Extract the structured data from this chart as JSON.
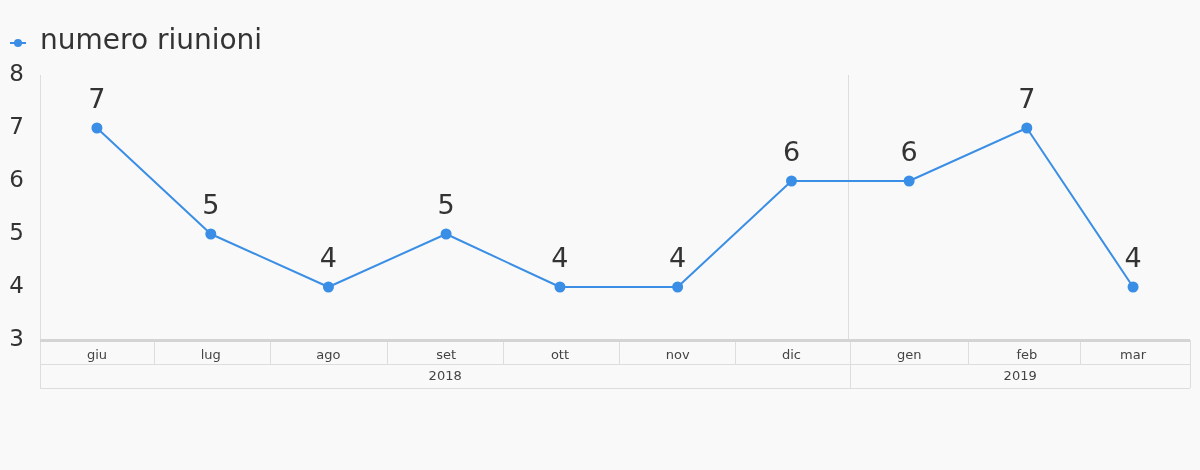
{
  "chart_data": {
    "type": "line",
    "x": [
      "2018-06",
      "2018-07",
      "2018-08",
      "2018-09",
      "2018-10",
      "2018-11",
      "2018-12",
      "2019-01",
      "2019-02",
      "2019-03"
    ],
    "xlim": [
      "2018-05-17",
      "2019-03-16"
    ],
    "xticks": [
      {
        "value": "2018-06",
        "label": "giu"
      },
      {
        "value": "2018-07",
        "label": "lug"
      },
      {
        "value": "2018-08",
        "label": "ago"
      },
      {
        "value": "2018-09",
        "label": "set"
      },
      {
        "value": "2018-10",
        "label": "ott"
      },
      {
        "value": "2018-11",
        "label": "nov"
      },
      {
        "value": "2018-12",
        "label": "dic"
      },
      {
        "value": "2019-01",
        "label": "gen"
      },
      {
        "value": "2019-02",
        "label": "feb"
      },
      {
        "value": "2019-03",
        "label": "mar"
      }
    ],
    "series": [
      {
        "name": "numero riunioni",
        "color": "#3a8ee6",
        "values": [
          7,
          5,
          4,
          5,
          4,
          4,
          6,
          6,
          7,
          4
        ]
      }
    ],
    "ylim": [
      3,
      8
    ],
    "yticks": [
      3,
      4,
      5,
      6,
      7,
      8
    ],
    "ref_lines": [
      {
        "axis": "x",
        "value": "2018-12-16",
        "color": "#dddddd"
      }
    ],
    "annotations": [
      "2018",
      "2019"
    ],
    "data_labels": true,
    "marker": "circle",
    "line_style": "solid",
    "grid": false,
    "legend": "top left"
  }
}
